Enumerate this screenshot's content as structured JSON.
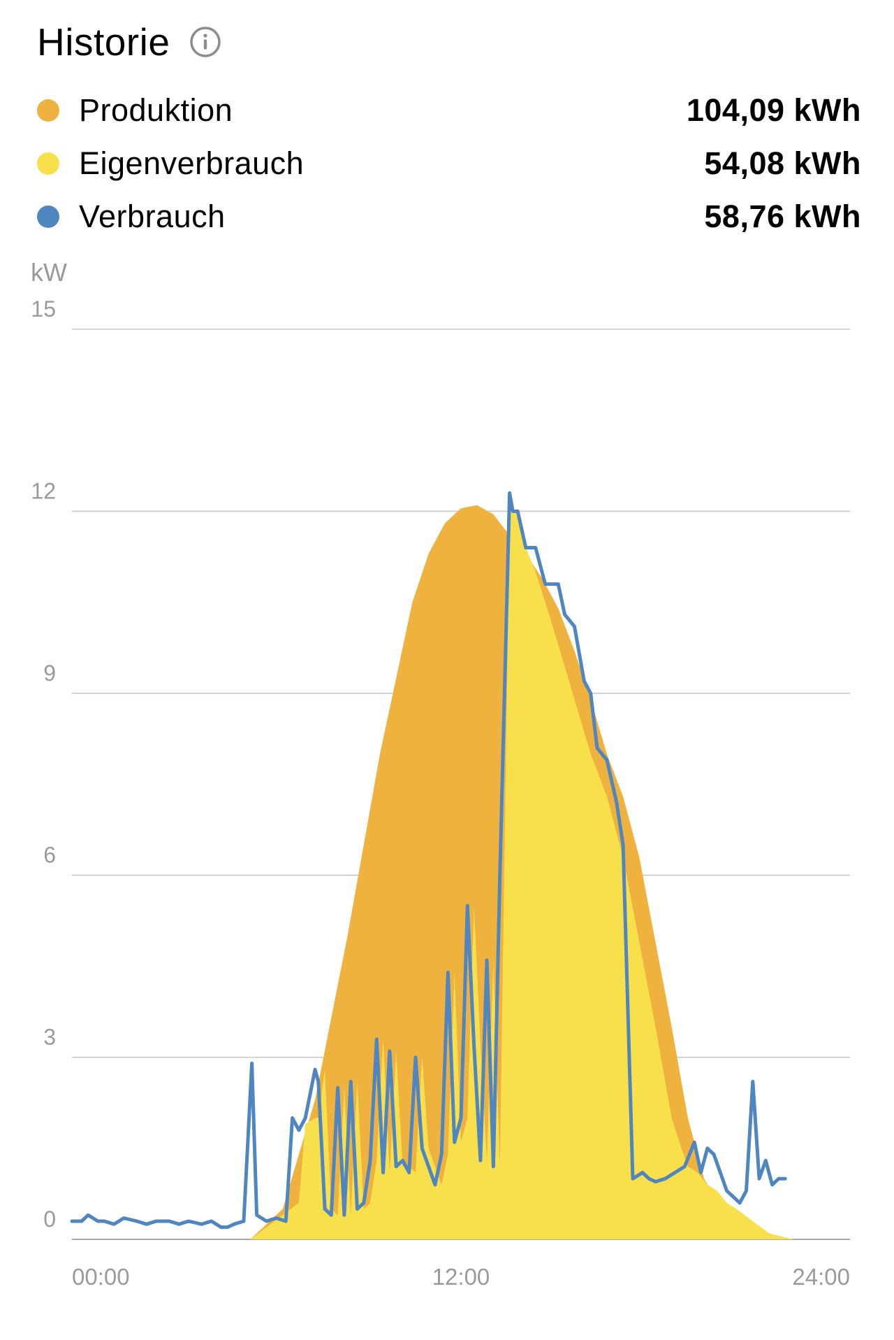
{
  "header": {
    "title": "Historie",
    "info_icon": "info-circle-icon"
  },
  "legend": [
    {
      "label": "Produktion",
      "value": "104,09 kWh",
      "color": "#F0B23E"
    },
    {
      "label": "Eigenverbrauch",
      "value": "54,08 kWh",
      "color": "#F8E04C"
    },
    {
      "label": "Verbrauch",
      "value": "58,76 kWh",
      "color": "#4F86C0"
    }
  ],
  "chart_data": {
    "type": "area",
    "unit_label": "kW",
    "y_ticks": [
      "15",
      "12",
      "9",
      "6",
      "3",
      "0"
    ],
    "ylim": [
      0,
      15
    ],
    "x_ticks": [
      "00:00",
      "12:00",
      "24:00"
    ],
    "xlim_hours": [
      0,
      24
    ],
    "grid": true,
    "series": [
      {
        "name": "Produktion",
        "kind": "area",
        "color": "#F0B23E",
        "x": [
          0,
          5.5,
          6.5,
          7.5,
          8.5,
          9.5,
          10.5,
          11.0,
          11.5,
          12.0,
          12.5,
          13.0,
          13.5,
          14.0,
          14.5,
          15.0,
          15.5,
          16.0,
          16.5,
          17.0,
          17.5,
          18.0,
          18.5,
          19.0,
          19.5,
          20.0,
          20.5,
          21.0,
          21.5,
          22.0,
          22.3,
          24
        ],
        "y": [
          0,
          0,
          0.5,
          2.3,
          5.0,
          8.0,
          10.5,
          11.3,
          11.8,
          12.05,
          12.1,
          11.95,
          11.6,
          11.3,
          10.9,
          10.4,
          9.7,
          8.9,
          8.0,
          7.3,
          6.3,
          4.9,
          3.5,
          2.0,
          1.0,
          0.55,
          0.3,
          0.1,
          0.03,
          0,
          0,
          0
        ]
      },
      {
        "name": "Eigenverbrauch",
        "kind": "area",
        "color": "#F8E04C",
        "x": [
          0,
          5.5,
          6.0,
          6.5,
          7.0,
          7.2,
          7.5,
          7.6,
          7.8,
          8.0,
          8.2,
          8.4,
          8.6,
          8.8,
          9.0,
          9.2,
          9.4,
          9.6,
          9.8,
          10.0,
          10.2,
          10.4,
          10.6,
          10.8,
          11.0,
          11.2,
          11.4,
          11.6,
          11.8,
          12.0,
          12.2,
          12.4,
          12.6,
          12.8,
          13.0,
          13.2,
          13.5,
          13.75,
          14.0,
          14.3,
          14.6,
          15.0,
          15.5,
          16.0,
          16.5,
          17.0,
          17.5,
          18.0,
          18.5,
          18.8,
          19.0,
          19.3,
          19.6,
          19.9,
          20.2,
          20.5,
          21.0,
          21.5,
          22.0,
          22.3,
          24
        ],
        "y": [
          0,
          0,
          0.2,
          0.4,
          0.6,
          1.9,
          2.0,
          2.0,
          2.8,
          0.5,
          0.4,
          2.5,
          0.4,
          2.6,
          0.5,
          0.6,
          1.3,
          3.3,
          1.1,
          3.1,
          1.2,
          1.2,
          1.1,
          3.0,
          1.5,
          1.2,
          0.9,
          1.4,
          4.4,
          1.6,
          2.0,
          5.5,
          3.2,
          1.3,
          4.6,
          1.2,
          12.0,
          12.0,
          11.4,
          11.0,
          10.5,
          9.8,
          8.9,
          8.0,
          7.3,
          6.3,
          4.9,
          3.5,
          2.0,
          1.5,
          1.2,
          1.1,
          0.9,
          0.8,
          0.6,
          0.5,
          0.3,
          0.1,
          0.03,
          0,
          0
        ]
      },
      {
        "name": "Verbrauch",
        "kind": "line",
        "color": "#4F86C0",
        "x": [
          0,
          0.3,
          0.5,
          0.8,
          1.0,
          1.3,
          1.6,
          2.0,
          2.3,
          2.6,
          3.0,
          3.3,
          3.6,
          4.0,
          4.3,
          4.6,
          4.8,
          5.0,
          5.3,
          5.55,
          5.7,
          5.85,
          6.0,
          6.3,
          6.6,
          6.8,
          7.0,
          7.2,
          7.5,
          7.6,
          7.8,
          8.0,
          8.2,
          8.4,
          8.6,
          8.8,
          9.0,
          9.2,
          9.4,
          9.6,
          9.8,
          10.0,
          10.2,
          10.4,
          10.6,
          10.8,
          11.0,
          11.2,
          11.4,
          11.6,
          11.8,
          12.0,
          12.2,
          12.4,
          12.6,
          12.8,
          13.0,
          13.2,
          13.5,
          13.6,
          13.75,
          14.0,
          14.3,
          14.6,
          15.0,
          15.2,
          15.5,
          15.8,
          16.0,
          16.2,
          16.5,
          16.8,
          17.0,
          17.3,
          17.6,
          17.8,
          18.0,
          18.3,
          18.6,
          18.9,
          19.2,
          19.4,
          19.6,
          19.8,
          20.0,
          20.2,
          20.4,
          20.6,
          20.8,
          21.0,
          21.2,
          21.4,
          21.6,
          21.8,
          22.0
        ],
        "y": [
          0.3,
          0.3,
          0.4,
          0.3,
          0.3,
          0.25,
          0.35,
          0.3,
          0.25,
          0.3,
          0.3,
          0.25,
          0.3,
          0.25,
          0.3,
          0.2,
          0.2,
          0.25,
          0.3,
          2.9,
          0.4,
          0.35,
          0.3,
          0.35,
          0.3,
          2.0,
          1.8,
          2.0,
          2.8,
          2.6,
          0.5,
          0.4,
          2.5,
          0.4,
          2.6,
          0.5,
          0.6,
          1.3,
          3.3,
          1.1,
          3.1,
          1.2,
          1.3,
          1.1,
          3.0,
          1.5,
          1.2,
          0.9,
          1.4,
          4.4,
          1.6,
          2.0,
          5.5,
          3.2,
          1.3,
          4.6,
          1.2,
          6.0,
          12.3,
          12.0,
          12.0,
          11.4,
          11.4,
          10.8,
          10.8,
          10.3,
          10.1,
          9.2,
          9.0,
          8.1,
          7.9,
          7.2,
          6.5,
          1.0,
          1.1,
          1.0,
          0.95,
          1.0,
          1.1,
          1.2,
          1.6,
          1.1,
          1.5,
          1.4,
          1.1,
          0.8,
          0.7,
          0.6,
          0.8,
          2.6,
          1.0,
          1.3,
          0.9,
          1.0,
          1.0
        ]
      }
    ]
  }
}
